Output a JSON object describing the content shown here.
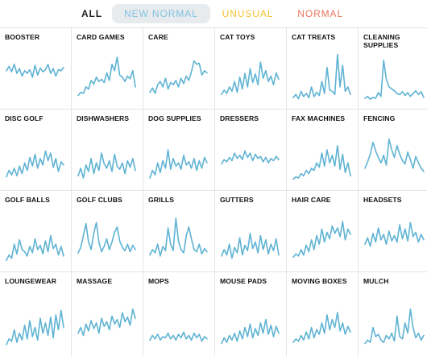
{
  "filters": [
    {
      "label": "ALL",
      "color": "#222222",
      "active": false
    },
    {
      "label": "NEW NORMAL",
      "color": "#7fc3e0",
      "active": true
    },
    {
      "label": "UNUSUAL",
      "color": "#f2c12e",
      "active": false
    },
    {
      "label": "NORMAL",
      "color": "#ec7560",
      "active": false
    }
  ],
  "line_color": "#5fb3d3",
  "categories": [
    {
      "label": "BOOSTER",
      "values": [
        60,
        68,
        58,
        72,
        55,
        64,
        50,
        60,
        55,
        62,
        48,
        70,
        52,
        65,
        58,
        62,
        72,
        55,
        64,
        50,
        62,
        60,
        66
      ]
    },
    {
      "label": "CARD GAMES",
      "values": [
        14,
        20,
        18,
        30,
        26,
        42,
        35,
        48,
        40,
        44,
        38,
        56,
        42,
        72,
        60,
        85,
        52,
        48,
        40,
        50,
        45,
        60,
        30
      ]
    },
    {
      "label": "CARE",
      "values": [
        20,
        28,
        18,
        34,
        40,
        30,
        46,
        26,
        38,
        34,
        42,
        30,
        46,
        36,
        50,
        42,
        58,
        78,
        72,
        74,
        52,
        60,
        56
      ]
    },
    {
      "label": "CAT TOYS",
      "values": [
        16,
        24,
        18,
        30,
        22,
        40,
        20,
        48,
        26,
        55,
        30,
        64,
        38,
        54,
        34,
        76,
        46,
        60,
        40,
        50,
        34,
        56,
        44
      ]
    },
    {
      "label": "CAT TREATS",
      "values": [
        10,
        16,
        8,
        22,
        12,
        18,
        10,
        30,
        12,
        20,
        14,
        40,
        18,
        66,
        24,
        22,
        16,
        90,
        30,
        70,
        22,
        30,
        16
      ]
    },
    {
      "label": "CLEANING SUPPLIES",
      "values": [
        10,
        14,
        8,
        12,
        10,
        22,
        14,
        90,
        50,
        34,
        30,
        26,
        20,
        18,
        24,
        16,
        22,
        14,
        20,
        26,
        18,
        24,
        12
      ]
    },
    {
      "label": "DISC GOLF",
      "values": [
        14,
        26,
        18,
        30,
        16,
        34,
        20,
        40,
        26,
        50,
        34,
        56,
        30,
        48,
        36,
        62,
        44,
        58,
        32,
        48,
        24,
        42,
        36
      ]
    },
    {
      "label": "DISHWASHERS",
      "values": [
        16,
        30,
        12,
        36,
        24,
        48,
        20,
        40,
        26,
        58,
        38,
        30,
        44,
        24,
        56,
        34,
        28,
        40,
        20,
        44,
        32,
        48,
        26
      ]
    },
    {
      "label": "DOG SUPPLIES",
      "values": [
        12,
        26,
        18,
        40,
        22,
        44,
        30,
        64,
        28,
        48,
        34,
        40,
        28,
        54,
        36,
        42,
        30,
        48,
        26,
        44,
        30,
        50,
        40
      ]
    },
    {
      "label": "DRESSERS",
      "values": [
        38,
        46,
        42,
        50,
        44,
        58,
        48,
        54,
        46,
        62,
        50,
        58,
        44,
        56,
        48,
        52,
        42,
        50,
        40,
        48,
        44,
        52,
        46
      ]
    },
    {
      "label": "FAX MACHINES",
      "values": [
        10,
        14,
        12,
        20,
        16,
        26,
        20,
        30,
        26,
        40,
        32,
        58,
        34,
        64,
        40,
        54,
        34,
        72,
        28,
        56,
        22,
        40,
        16
      ]
    },
    {
      "label": "FENCING",
      "values": [
        30,
        42,
        56,
        78,
        62,
        50,
        40,
        54,
        36,
        84,
        64,
        50,
        72,
        56,
        44,
        38,
        60,
        46,
        30,
        52,
        40,
        30,
        24
      ]
    },
    {
      "label": "GOLF BALLS",
      "values": [
        10,
        20,
        14,
        40,
        22,
        48,
        30,
        26,
        18,
        36,
        24,
        50,
        30,
        38,
        22,
        46,
        26,
        56,
        32,
        40,
        20,
        36,
        18
      ]
    },
    {
      "label": "GOLF CLUBS",
      "values": [
        24,
        34,
        56,
        78,
        44,
        30,
        60,
        80,
        44,
        26,
        36,
        50,
        30,
        44,
        62,
        72,
        46,
        34,
        28,
        40,
        26,
        38,
        30
      ]
    },
    {
      "label": "GRILLS",
      "values": [
        20,
        30,
        24,
        40,
        18,
        36,
        28,
        70,
        40,
        28,
        88,
        46,
        30,
        24,
        56,
        72,
        50,
        30,
        26,
        40,
        22,
        32,
        26
      ]
    },
    {
      "label": "GUTTERS",
      "values": [
        18,
        30,
        20,
        40,
        14,
        34,
        24,
        52,
        20,
        38,
        28,
        60,
        32,
        44,
        24,
        56,
        30,
        48,
        22,
        40,
        28,
        50,
        20
      ]
    },
    {
      "label": "HAIR CARE",
      "values": [
        16,
        22,
        18,
        30,
        20,
        38,
        26,
        48,
        30,
        56,
        40,
        68,
        44,
        62,
        50,
        74,
        60,
        70,
        54,
        82,
        48,
        68,
        58
      ]
    },
    {
      "label": "HEADSETS",
      "values": [
        40,
        52,
        36,
        60,
        44,
        70,
        48,
        58,
        40,
        64,
        46,
        56,
        44,
        76,
        50,
        68,
        46,
        80,
        54,
        62,
        44,
        58,
        48
      ]
    },
    {
      "label": "LOUNGEWEAR",
      "values": [
        10,
        20,
        16,
        36,
        14,
        30,
        18,
        44,
        20,
        52,
        24,
        40,
        18,
        56,
        30,
        48,
        26,
        58,
        22,
        62,
        36,
        70,
        40
      ]
    },
    {
      "label": "MASSAGE",
      "values": [
        30,
        40,
        26,
        46,
        34,
        52,
        38,
        48,
        30,
        56,
        42,
        50,
        36,
        60,
        46,
        54,
        40,
        66,
        50,
        58,
        44,
        72,
        56
      ]
    },
    {
      "label": "MOPS",
      "values": [
        18,
        26,
        20,
        28,
        18,
        24,
        22,
        30,
        20,
        26,
        18,
        28,
        22,
        32,
        20,
        26,
        18,
        30,
        22,
        28,
        16,
        24,
        20
      ]
    },
    {
      "label": "MOUSE PADS",
      "values": [
        12,
        22,
        14,
        26,
        18,
        30,
        16,
        34,
        20,
        40,
        24,
        46,
        22,
        38,
        26,
        48,
        30,
        54,
        28,
        44,
        24,
        42,
        30
      ]
    },
    {
      "label": "MOVING BOXES",
      "values": [
        14,
        20,
        16,
        26,
        18,
        32,
        20,
        40,
        22,
        36,
        28,
        48,
        30,
        62,
        36,
        54,
        40,
        66,
        34,
        48,
        28,
        42,
        32
      ]
    },
    {
      "label": "MULCH",
      "values": [
        12,
        18,
        14,
        40,
        24,
        28,
        18,
        14,
        26,
        20,
        30,
        16,
        60,
        24,
        20,
        48,
        30,
        72,
        40,
        22,
        30,
        18,
        26
      ]
    }
  ]
}
